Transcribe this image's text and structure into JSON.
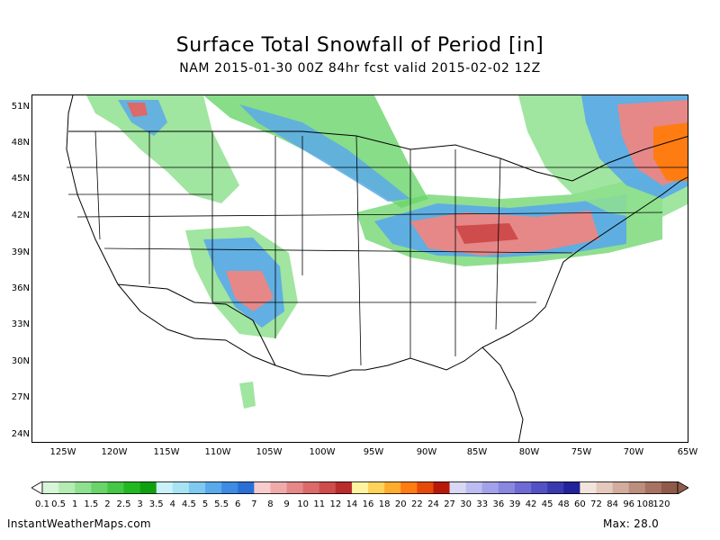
{
  "title": "Surface Total Snowfall of Period [in]",
  "subtitle": "NAM 2015-01-30 00Z 84hr fcst valid 2015-02-02 12Z",
  "lat_labels": [
    "51N",
    "48N",
    "45N",
    "42N",
    "39N",
    "36N",
    "33N",
    "30N",
    "27N",
    "24N"
  ],
  "lon_labels": [
    "125W",
    "120W",
    "115W",
    "110W",
    "105W",
    "100W",
    "95W",
    "90W",
    "85W",
    "80W",
    "75W",
    "70W",
    "65W"
  ],
  "colorbar": {
    "labels": [
      "0.1",
      "0.5",
      "1",
      "1.5",
      "2",
      "2.5",
      "3",
      "3.5",
      "4",
      "4.5",
      "5",
      "5.5",
      "6",
      "7",
      "8",
      "9",
      "10",
      "11",
      "12",
      "14",
      "16",
      "18",
      "20",
      "22",
      "24",
      "27",
      "30",
      "33",
      "36",
      "39",
      "42",
      "45",
      "48",
      "60",
      "72",
      "84",
      "96",
      "108",
      "120"
    ],
    "colors": [
      "#d7f5d7",
      "#b4ecb4",
      "#8fe08f",
      "#6ad46a",
      "#45c745",
      "#22b822",
      "#0fa00f",
      "#c9f1f7",
      "#a6e4f2",
      "#7fc8ef",
      "#5aa9ea",
      "#3d8be2",
      "#2a6fd6",
      "#f7cccc",
      "#f0aaaa",
      "#e68888",
      "#dc6a6a",
      "#cf4c4c",
      "#b82c2c",
      "#fff2a0",
      "#ffd25a",
      "#ffac2c",
      "#ff7c12",
      "#e64a0a",
      "#b81808",
      "#d8d8f5",
      "#bcbcf0",
      "#a2a2ea",
      "#8888e0",
      "#6c6cd4",
      "#5252c4",
      "#3a3ab0",
      "#22229a",
      "#f2e4dc",
      "#e4cabc",
      "#d2ac9c",
      "#bc8e7e",
      "#a87262",
      "#8e5a4a"
    ],
    "left_arrow_color": "#ffffff",
    "right_arrow_color": "#8e5a4a"
  },
  "footer": {
    "site": "InstantWeatherMaps.com",
    "max": "Max:  28.0"
  }
}
